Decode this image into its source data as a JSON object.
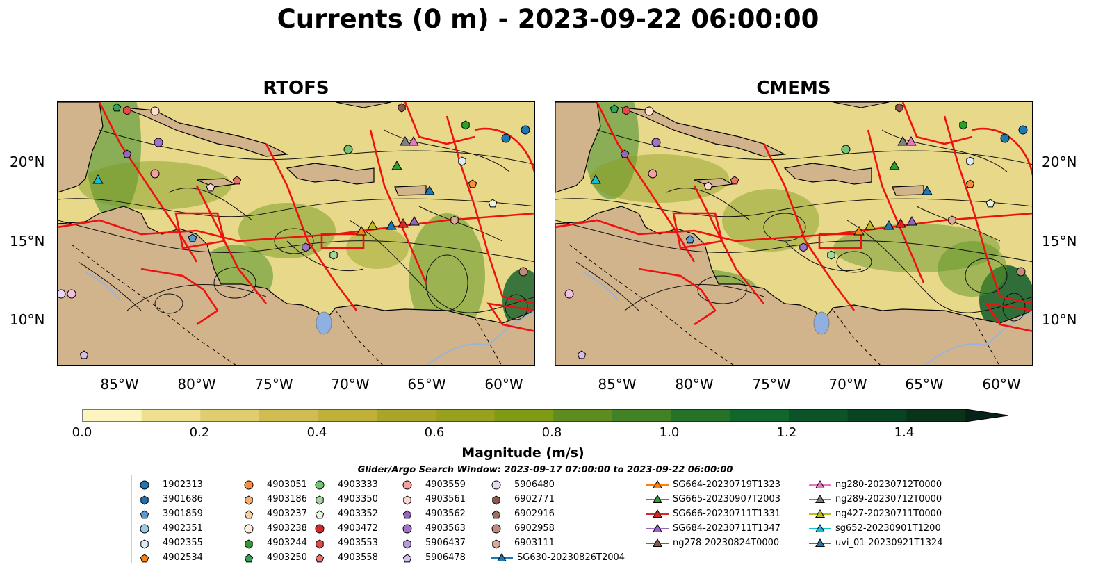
{
  "title": "Currents (0 m) - 2023-09-22 06:00:00",
  "panels": [
    {
      "title": "RTOFS",
      "lat_side": "left"
    },
    {
      "title": "CMEMS",
      "lat_side": "right"
    }
  ],
  "lat_labels": [
    "20°N",
    "15°N",
    "10°N"
  ],
  "lon_labels": [
    "85°W",
    "80°W",
    "75°W",
    "70°W",
    "65°W",
    "60°W"
  ],
  "colorbar": {
    "label": "Magnitude (m/s)",
    "ticks": [
      "0.0",
      "0.2",
      "0.4",
      "0.6",
      "0.8",
      "1.0",
      "1.2",
      "1.4"
    ],
    "min": 0.0,
    "max": 1.5,
    "extend": "max",
    "colors": [
      "#fdf5c0",
      "#efe08f",
      "#e0cd70",
      "#d0bd52",
      "#bfb03a",
      "#aaa52a",
      "#97a11d",
      "#7f9a15",
      "#5f8c1e",
      "#438124",
      "#267228",
      "#11662d",
      "#0c5427",
      "#0a4322",
      "#0a331c",
      "#08221a"
    ]
  },
  "search_window": "Glider/Argo Search Window: 2023-09-17 07:00:00 to 2023-09-22 06:00:00",
  "legend": {
    "columns": [
      [
        {
          "label": "1902313",
          "marker": "circle",
          "color": "#1f77b4"
        },
        {
          "label": "3901686",
          "marker": "hexagon",
          "color": "#2070b4"
        },
        {
          "label": "3901859",
          "marker": "pentagon",
          "color": "#5b9bd5"
        },
        {
          "label": "4902351",
          "marker": "circle",
          "color": "#9ecae1"
        },
        {
          "label": "4902355",
          "marker": "hexagon",
          "color": "#deebf7"
        },
        {
          "label": "4902534",
          "marker": "pentagon",
          "color": "#ff7f0e"
        }
      ],
      [
        {
          "label": "4903051",
          "marker": "circle",
          "color": "#fd8d3c"
        },
        {
          "label": "4903186",
          "marker": "hexagon",
          "color": "#fdae6b"
        },
        {
          "label": "4903237",
          "marker": "pentagon",
          "color": "#fdd0a2"
        },
        {
          "label": "4903238",
          "marker": "circle",
          "color": "#feedde"
        },
        {
          "label": "4903244",
          "marker": "hexagon",
          "color": "#2ca02c"
        },
        {
          "label": "4903250",
          "marker": "pentagon",
          "color": "#31a354"
        }
      ],
      [
        {
          "label": "4903333",
          "marker": "circle",
          "color": "#74c476"
        },
        {
          "label": "4903350",
          "marker": "hexagon",
          "color": "#a1d99b"
        },
        {
          "label": "4903352",
          "marker": "pentagon",
          "color": "#e5f5e0"
        },
        {
          "label": "4903472",
          "marker": "circle",
          "color": "#d62728"
        },
        {
          "label": "4903553",
          "marker": "hexagon",
          "color": "#e34a4a"
        },
        {
          "label": "4903558",
          "marker": "pentagon",
          "color": "#ef6f6f"
        }
      ],
      [
        {
          "label": "4903559",
          "marker": "circle",
          "color": "#f4a0a0"
        },
        {
          "label": "4903561",
          "marker": "hexagon",
          "color": "#fcd5d5"
        },
        {
          "label": "4903562",
          "marker": "pentagon",
          "color": "#9467bd"
        },
        {
          "label": "4903563",
          "marker": "circle",
          "color": "#9e73c8"
        },
        {
          "label": "5906437",
          "marker": "hexagon",
          "color": "#b79bd8"
        },
        {
          "label": "5906478",
          "marker": "pentagon",
          "color": "#d4c0ea"
        }
      ],
      [
        {
          "label": "5906480",
          "marker": "circle",
          "color": "#ead9f5"
        },
        {
          "label": "6902771",
          "marker": "hexagon",
          "color": "#8c564b"
        },
        {
          "label": "6902916",
          "marker": "pentagon",
          "color": "#a0705f"
        },
        {
          "label": "6902958",
          "marker": "circle",
          "color": "#c08a7d"
        },
        {
          "label": "6903111",
          "marker": "hexagon",
          "color": "#dba89a"
        },
        {
          "label": "SG630-20230826T2004",
          "marker": "triangle-line",
          "color": "#1f77b4"
        }
      ],
      [
        {
          "label": "SG664-20230719T1323",
          "marker": "triangle-line",
          "color": "#ff7f0e"
        },
        {
          "label": "SG665-20230907T2003",
          "marker": "triangle-line",
          "color": "#2ca02c"
        },
        {
          "label": "SG666-20230711T1331",
          "marker": "triangle-line",
          "color": "#d62728"
        },
        {
          "label": "SG684-20230711T1347",
          "marker": "triangle-line",
          "color": "#9467bd"
        },
        {
          "label": "ng278-20230824T0000",
          "marker": "triangle-line",
          "color": "#8c564b"
        }
      ],
      [
        {
          "label": "ng280-20230712T0000",
          "marker": "triangle-line",
          "color": "#e377c2"
        },
        {
          "label": "ng289-20230712T0000",
          "marker": "triangle-line",
          "color": "#7f7f7f"
        },
        {
          "label": "ng427-20230711T0000",
          "marker": "triangle-line",
          "color": "#bcbd22"
        },
        {
          "label": "sg652-20230901T1200",
          "marker": "triangle-line",
          "color": "#17becf"
        },
        {
          "label": "uvi_01-20230921T1324",
          "marker": "triangle-line",
          "color": "#1f77b4"
        }
      ]
    ]
  }
}
